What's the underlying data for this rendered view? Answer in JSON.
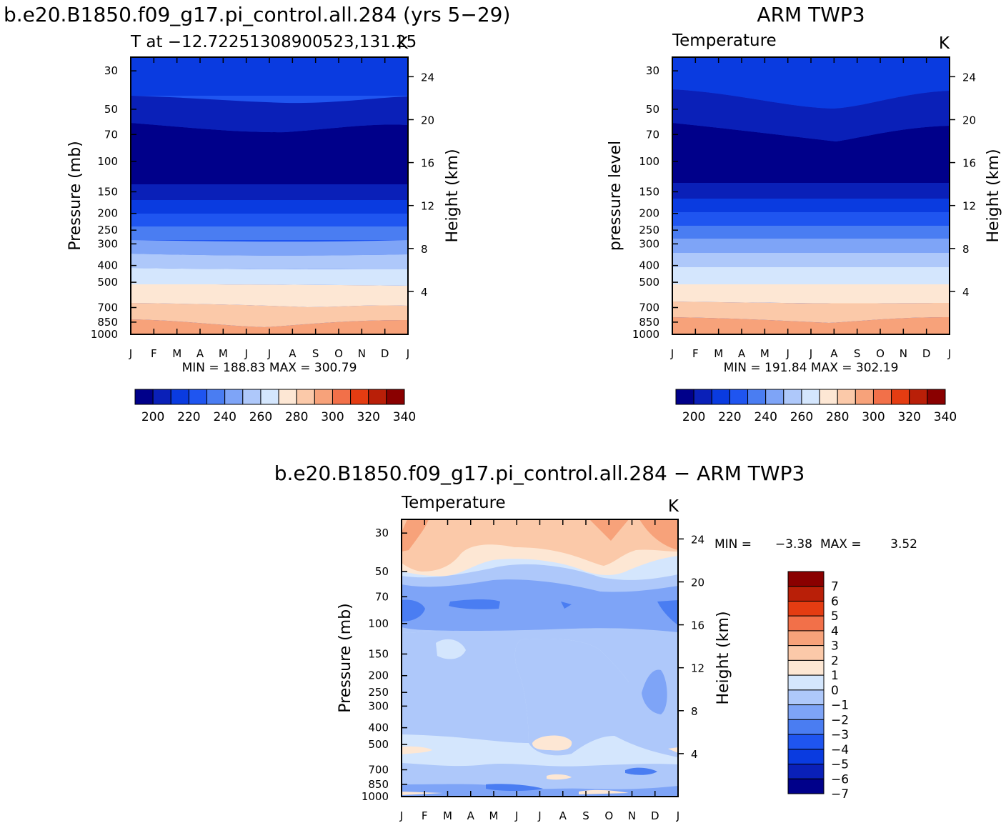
{
  "palette": {
    "temperature_levels": [
      "#00008a",
      "#0a20b8",
      "#0a3be0",
      "#1f55f0",
      "#4a7df2",
      "#7ea4f7",
      "#aec8fa",
      "#d4e6fd",
      "#fde7d4",
      "#fbc9a9",
      "#f7a27a",
      "#f27049",
      "#e43c12",
      "#b91f08",
      "#8a0000"
    ],
    "difference_levels": [
      "#00008a",
      "#0a20b8",
      "#0a3be0",
      "#1f55f0",
      "#4a7df2",
      "#7ea4f7",
      "#aec8fa",
      "#d4e6fd",
      "#fde7d4",
      "#fbc9a9",
      "#f7a27a",
      "#f27049",
      "#e43c12",
      "#b91f08",
      "#8a0000"
    ]
  },
  "chart_data": [
    {
      "type": "heatmap",
      "title": "b.e20.B1850.f09_g17.pi_control.all.284 (yrs 5−29)",
      "subtitle_left": "T at −12.72251308900523,131.25",
      "subtitle_right": "K",
      "xlabel": "",
      "ylabel": "Pressure (mb)",
      "ylabel_right": "Height (km)",
      "x_ticks": [
        "J",
        "F",
        "M",
        "A",
        "M",
        "J",
        "J",
        "A",
        "S",
        "O",
        "N",
        "D",
        "J"
      ],
      "y_ticks": [
        "30",
        "50",
        "70",
        "100",
        "150",
        "200",
        "250",
        "300",
        "400",
        "500",
        "700",
        "850",
        "1000"
      ],
      "y_right_ticks": [
        "24",
        "20",
        "16",
        "12",
        "8",
        "4"
      ],
      "ylim": [
        1000,
        25
      ],
      "stats": "MIN = 188.83 MAX = 300.79",
      "legend_ticks": [
        "200",
        "220",
        "240",
        "260",
        "280",
        "300",
        "320",
        "340"
      ],
      "bands_pressure_mb": [
        1000,
        850,
        680,
        510,
        420,
        330,
        270,
        220,
        175,
        140,
        60,
        40,
        25
      ],
      "band_levels": [
        10,
        9,
        8,
        7,
        6,
        5,
        4,
        3,
        2,
        0,
        1,
        2
      ]
    },
    {
      "type": "heatmap",
      "title": "ARM TWP3",
      "subtitle_left": "Temperature",
      "subtitle_right": "K",
      "ylabel": "pressure level",
      "ylabel_right": "Height (km)",
      "x_ticks": [
        "J",
        "F",
        "M",
        "A",
        "M",
        "J",
        "J",
        "A",
        "S",
        "O",
        "N",
        "D",
        "J"
      ],
      "y_ticks": [
        "30",
        "50",
        "70",
        "100",
        "150",
        "200",
        "250",
        "300",
        "400",
        "500",
        "700",
        "850",
        "1000"
      ],
      "y_right_ticks": [
        "24",
        "20",
        "16",
        "12",
        "8",
        "4"
      ],
      "ylim": [
        1000,
        25
      ],
      "stats": "MIN = 191.84 MAX = 302.19",
      "legend_ticks": [
        "200",
        "220",
        "240",
        "260",
        "280",
        "300",
        "320",
        "340"
      ],
      "bands_pressure_mb": [
        1000,
        830,
        680,
        510,
        420,
        330,
        270,
        220,
        170,
        140,
        60,
        35,
        25
      ],
      "band_levels": [
        10,
        9,
        8,
        7,
        6,
        5,
        4,
        3,
        2,
        0,
        1,
        2
      ]
    },
    {
      "type": "heatmap",
      "title": "b.e20.B1850.f09_g17.pi_control.all.284 − ARM TWP3",
      "subtitle_left": "Temperature",
      "subtitle_right": "K",
      "ylabel": "Pressure (mb)",
      "ylabel_right": "Height (km)",
      "x_ticks": [
        "J",
        "F",
        "M",
        "A",
        "M",
        "J",
        "J",
        "A",
        "S",
        "O",
        "N",
        "D",
        "J"
      ],
      "y_ticks": [
        "30",
        "50",
        "70",
        "100",
        "150",
        "200",
        "250",
        "300",
        "400",
        "500",
        "700",
        "850",
        "1000"
      ],
      "y_right_ticks": [
        "24",
        "20",
        "16",
        "12",
        "8",
        "4"
      ],
      "ylim": [
        1000,
        25
      ],
      "stats_label_min": "MIN =",
      "stats_min": "−3.38",
      "stats_label_max": "MAX =",
      "stats_max": "3.52",
      "legend_ticks": [
        "7",
        "6",
        "5",
        "4",
        "3",
        "2",
        "1",
        "0",
        "−1",
        "−2",
        "−3",
        "−4",
        "−5",
        "−6",
        "−7"
      ],
      "approx_difference_range": [
        -3.38,
        3.52
      ]
    }
  ]
}
